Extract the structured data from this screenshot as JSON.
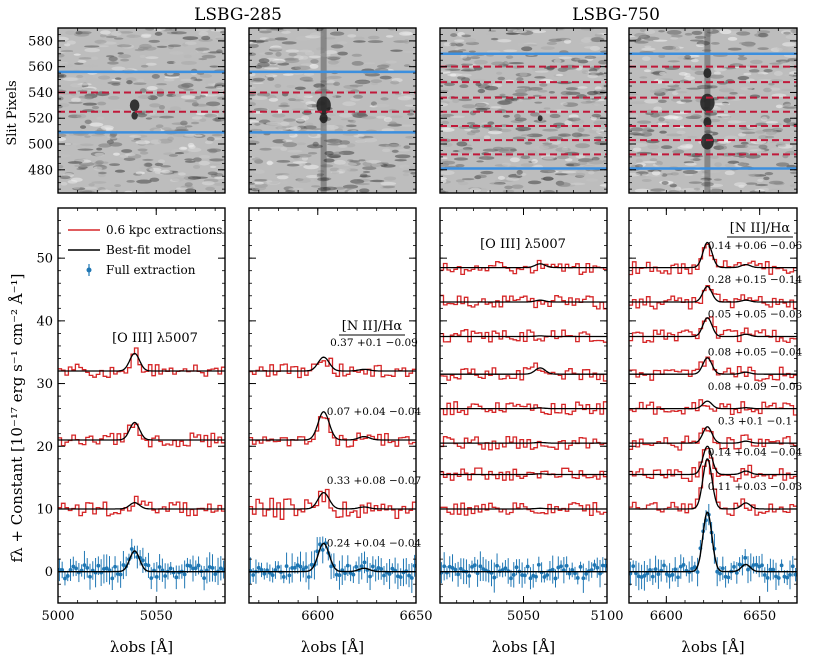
{
  "figure": {
    "group_titles": [
      "LSBG-285",
      "LSBG-750"
    ],
    "top_ylabel": "Slit Pixels",
    "bottom_ylabel": "fλ + Constant [10⁻¹⁷ erg s⁻¹ cm⁻² Å⁻¹]",
    "xlabel": "λobs [Å]"
  },
  "legend": {
    "placement": "top-left of first bottom panel",
    "entries": [
      {
        "label": "0.6 kpc extractions",
        "style": "step",
        "color": "#d62728"
      },
      {
        "label": "Best-fit model",
        "style": "line",
        "color": "#000000"
      },
      {
        "label": "Full extraction",
        "style": "errorbar",
        "color": "#1f77b4"
      }
    ]
  },
  "colors": {
    "extraction": "#d62728",
    "model": "#000000",
    "full": "#1f77b4",
    "aperture": "#3c8fde",
    "sub_aperture": "#c0193a"
  },
  "chart_data": [
    {
      "type": "heatmap",
      "panel": "top-1",
      "title": "LSBG-285",
      "ylabel": "Slit Pixels",
      "xlim": [
        5000,
        5085
      ],
      "ylim": [
        462,
        590
      ],
      "yticks": [
        480,
        500,
        520,
        540,
        560,
        580
      ],
      "solid_lines": [
        509,
        556
      ],
      "dashed_lines": [
        525,
        540
      ]
    },
    {
      "type": "heatmap",
      "panel": "top-2",
      "xlim": [
        6565,
        6650
      ],
      "ylim": [
        462,
        590
      ],
      "yticks": [
        480,
        500,
        520,
        540,
        560,
        580
      ],
      "solid_lines": [
        509,
        556
      ],
      "dashed_lines": [
        525,
        540
      ]
    },
    {
      "type": "heatmap",
      "panel": "top-3",
      "title": "LSBG-750",
      "xlim": [
        5000,
        5100
      ],
      "ylim": [
        462,
        590
      ],
      "yticks": [
        480,
        500,
        520,
        540,
        560,
        580
      ],
      "solid_lines": [
        481,
        570
      ],
      "dashed_lines": [
        492,
        503,
        514,
        525,
        536,
        548,
        560
      ]
    },
    {
      "type": "heatmap",
      "panel": "top-4",
      "xlim": [
        6580,
        6670
      ],
      "ylim": [
        462,
        590
      ],
      "yticks": [
        480,
        500,
        520,
        540,
        560,
        580
      ],
      "solid_lines": [
        481,
        570
      ],
      "dashed_lines": [
        492,
        503,
        514,
        525,
        536,
        548,
        560
      ]
    },
    {
      "type": "line",
      "panel": "bottom-1",
      "xlim": [
        5000,
        5085
      ],
      "ylim": [
        -5,
        58
      ],
      "xticks": [
        5000,
        5050
      ],
      "yticks": [
        0,
        10,
        20,
        30,
        40,
        50
      ],
      "line_label": "[O III] λ5007",
      "offsets": [
        10,
        21,
        32
      ],
      "center": 5039,
      "sigma": 2.5,
      "amplitudes": [
        1.0,
        2.8,
        2.8
      ],
      "full": {
        "offset": 0,
        "amplitude": 3.3
      }
    },
    {
      "type": "line",
      "panel": "bottom-2",
      "xlim": [
        6565,
        6650
      ],
      "ylim": [
        -5,
        58
      ],
      "xticks": [
        6600,
        6650
      ],
      "yticks": [
        0,
        10,
        20,
        30,
        40,
        50
      ],
      "line_label": "[N II]/Hα",
      "offsets": [
        10,
        21,
        32
      ],
      "center": 6603,
      "sigma": 2.8,
      "amplitudes": [
        2.6,
        4.5,
        2.2
      ],
      "annotations": [
        "0.24 +0.04 −0.04",
        "0.33 +0.08 −0.07",
        "0.07 +0.04 −0.04",
        "0.37 +0.1 −0.09"
      ],
      "full": {
        "offset": 0,
        "amplitude": 4.5
      }
    },
    {
      "type": "line",
      "panel": "bottom-3",
      "xlim": [
        5000,
        5100
      ],
      "ylim": [
        -5,
        58
      ],
      "xticks": [
        5050,
        5100
      ],
      "yticks": [
        0,
        10,
        20,
        30,
        40,
        50
      ],
      "line_label": "[O III] λ5007",
      "offsets": [
        10,
        15.5,
        20.5,
        26,
        31.5,
        37.5,
        43,
        48.5
      ],
      "center": 5060,
      "sigma": 3.0,
      "amplitudes": [
        0.1,
        0.1,
        0.1,
        0.1,
        1.0,
        0.1,
        0.3,
        0.6
      ],
      "full": {
        "offset": 0,
        "amplitude": 0.0
      }
    },
    {
      "type": "line",
      "panel": "bottom-4",
      "xlim": [
        6580,
        6670
      ],
      "ylim": [
        -5,
        58
      ],
      "xticks": [
        6600,
        6650
      ],
      "yticks": [
        0,
        10,
        20,
        30,
        40,
        50
      ],
      "line_label": "[N II]/Hα",
      "offsets": [
        10,
        15.5,
        20.5,
        26,
        31.5,
        37.5,
        43,
        48.5
      ],
      "center": 6622,
      "sigma": 2.4,
      "amplitudes": [
        8.0,
        4.5,
        2.6,
        1.2,
        2.6,
        3.0,
        2.5,
        4.0
      ],
      "annotations": [
        "0.11 +0.03 −0.03",
        "0.14 +0.04 −0.04",
        "0.3 +0.1 −0.1",
        "0.08 +0.09 −0.06",
        "0.08 +0.05 −0.04",
        "0.05 +0.05 −0.03",
        "0.28 +0.15 −0.14",
        "0.14 +0.06 −0.06"
      ],
      "full": {
        "offset": 0,
        "amplitude": 9.5
      }
    }
  ]
}
